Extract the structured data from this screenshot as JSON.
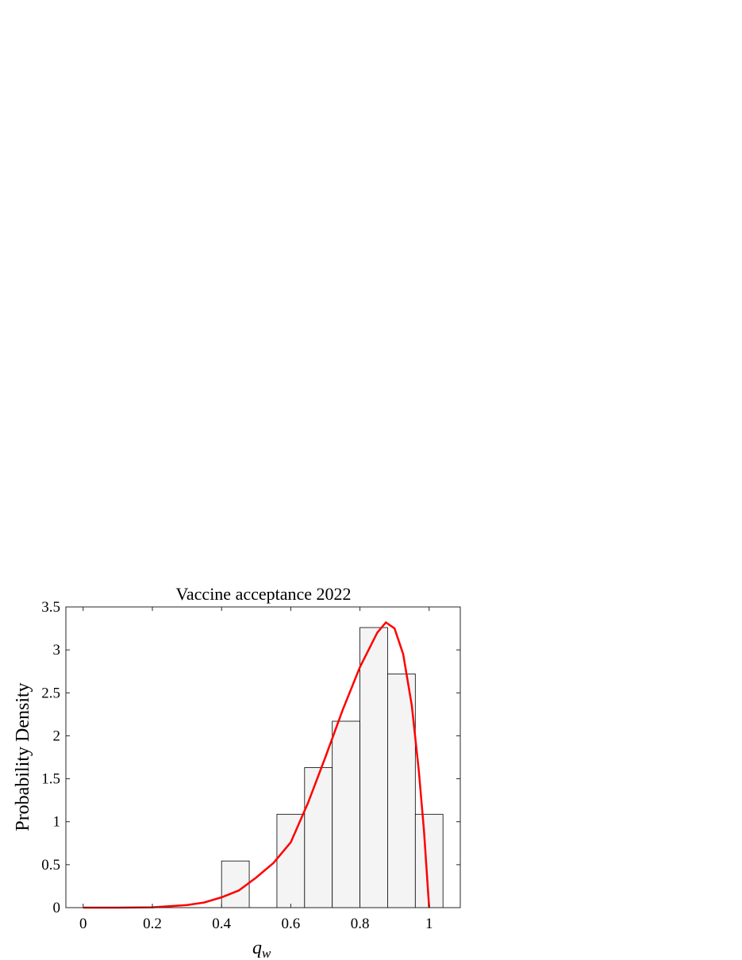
{
  "chart_data": {
    "type": "histogram",
    "title": "Vaccine acceptance 2022",
    "xlabel": "q",
    "xlabel_subscript": "w",
    "ylabel": "Probability Density",
    "bins": [
      0.4,
      0.48,
      0.56,
      0.64,
      0.72,
      0.8,
      0.88,
      0.96,
      1.04
    ],
    "values": [
      0.543,
      0,
      1.087,
      1.63,
      2.17,
      3.26,
      2.72,
      1.087
    ],
    "color": "#f4f4f4",
    "edgecolor": "#000000",
    "line": {
      "color": "#ff0000",
      "x": [
        0,
        0.1,
        0.2,
        0.3,
        0.35,
        0.4,
        0.45,
        0.5,
        0.55,
        0.6,
        0.65,
        0.7,
        0.75,
        0.8,
        0.85,
        0.875,
        0.9,
        0.925,
        0.95,
        0.97,
        0.985,
        1
      ],
      "values": [
        0,
        0,
        0.003,
        0.03,
        0.06,
        0.12,
        0.2,
        0.35,
        0.52,
        0.76,
        1.22,
        1.75,
        2.3,
        2.8,
        3.2,
        3.32,
        3.25,
        2.95,
        2.35,
        1.6,
        0.9,
        0
      ]
    },
    "xlim": [
      -0.05,
      1.09
    ],
    "ylim": [
      0,
      3.5
    ],
    "xticks": [
      0,
      0.2,
      0.4,
      0.6,
      0.8,
      1
    ],
    "yticks": [
      0,
      0.5,
      1,
      1.5,
      2,
      2.5,
      3,
      3.5
    ]
  }
}
